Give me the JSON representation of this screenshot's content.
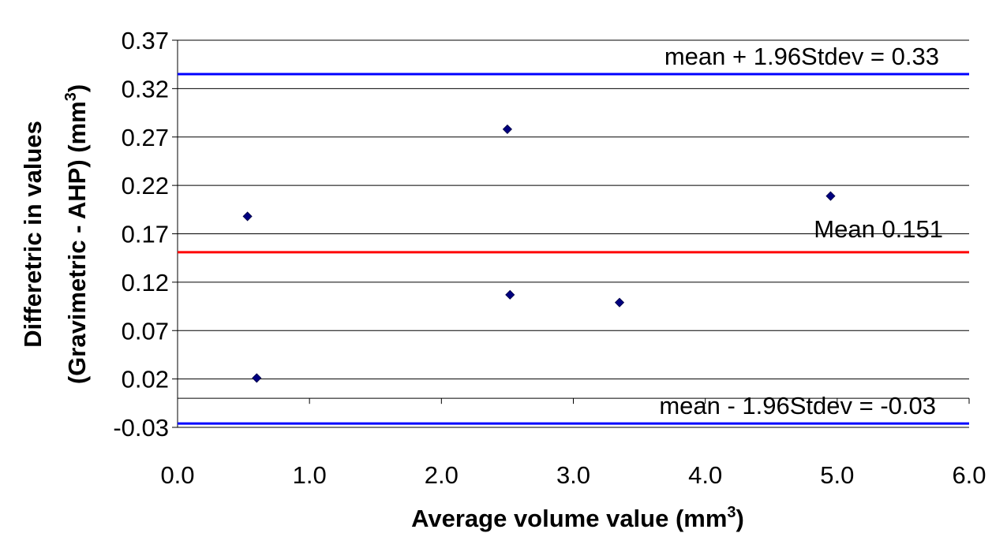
{
  "chart_data": {
    "type": "scatter",
    "title": "",
    "xlabel": "Average volume value (mm",
    "xlabel_sup": "3",
    "xlabel_end": ")",
    "ylabel_line1": "Differetric in values",
    "ylabel_line2": "(Gravimetric - AHP) (mm",
    "ylabel_sup": "3",
    "ylabel_end": ")",
    "xlim": [
      0.0,
      6.0
    ],
    "ylim": [
      -0.03,
      0.37
    ],
    "x_ticks": [
      0,
      1,
      2,
      3,
      4,
      5,
      6
    ],
    "x_tick_labels": [
      "0.0",
      "1.0",
      "2.0",
      "3.0",
      "4.0",
      "5.0",
      "6.0"
    ],
    "y_ticks": [
      -0.03,
      0.02,
      0.07,
      0.12,
      0.17,
      0.22,
      0.27,
      0.32,
      0.37
    ],
    "y_tick_labels": [
      "-0.03",
      "0.02",
      "0.07",
      "0.12",
      "0.17",
      "0.22",
      "0.27",
      "0.32",
      "0.37"
    ],
    "grid": true,
    "points": [
      {
        "x": 0.53,
        "y": 0.188
      },
      {
        "x": 0.6,
        "y": 0.021
      },
      {
        "x": 2.5,
        "y": 0.278
      },
      {
        "x": 2.52,
        "y": 0.107
      },
      {
        "x": 3.35,
        "y": 0.099
      },
      {
        "x": 4.95,
        "y": 0.209
      }
    ],
    "reference_lines": [
      {
        "y": 0.335,
        "color": "#0000FF",
        "label": "mean + 1.96Stdev = 0.33"
      },
      {
        "y": 0.151,
        "color": "#FF0000",
        "label": "Mean 0.151"
      },
      {
        "y": -0.026,
        "color": "#0000FF",
        "label": "mean - 1.96Stdev = -0.03"
      }
    ],
    "marker_color": "#000080"
  }
}
